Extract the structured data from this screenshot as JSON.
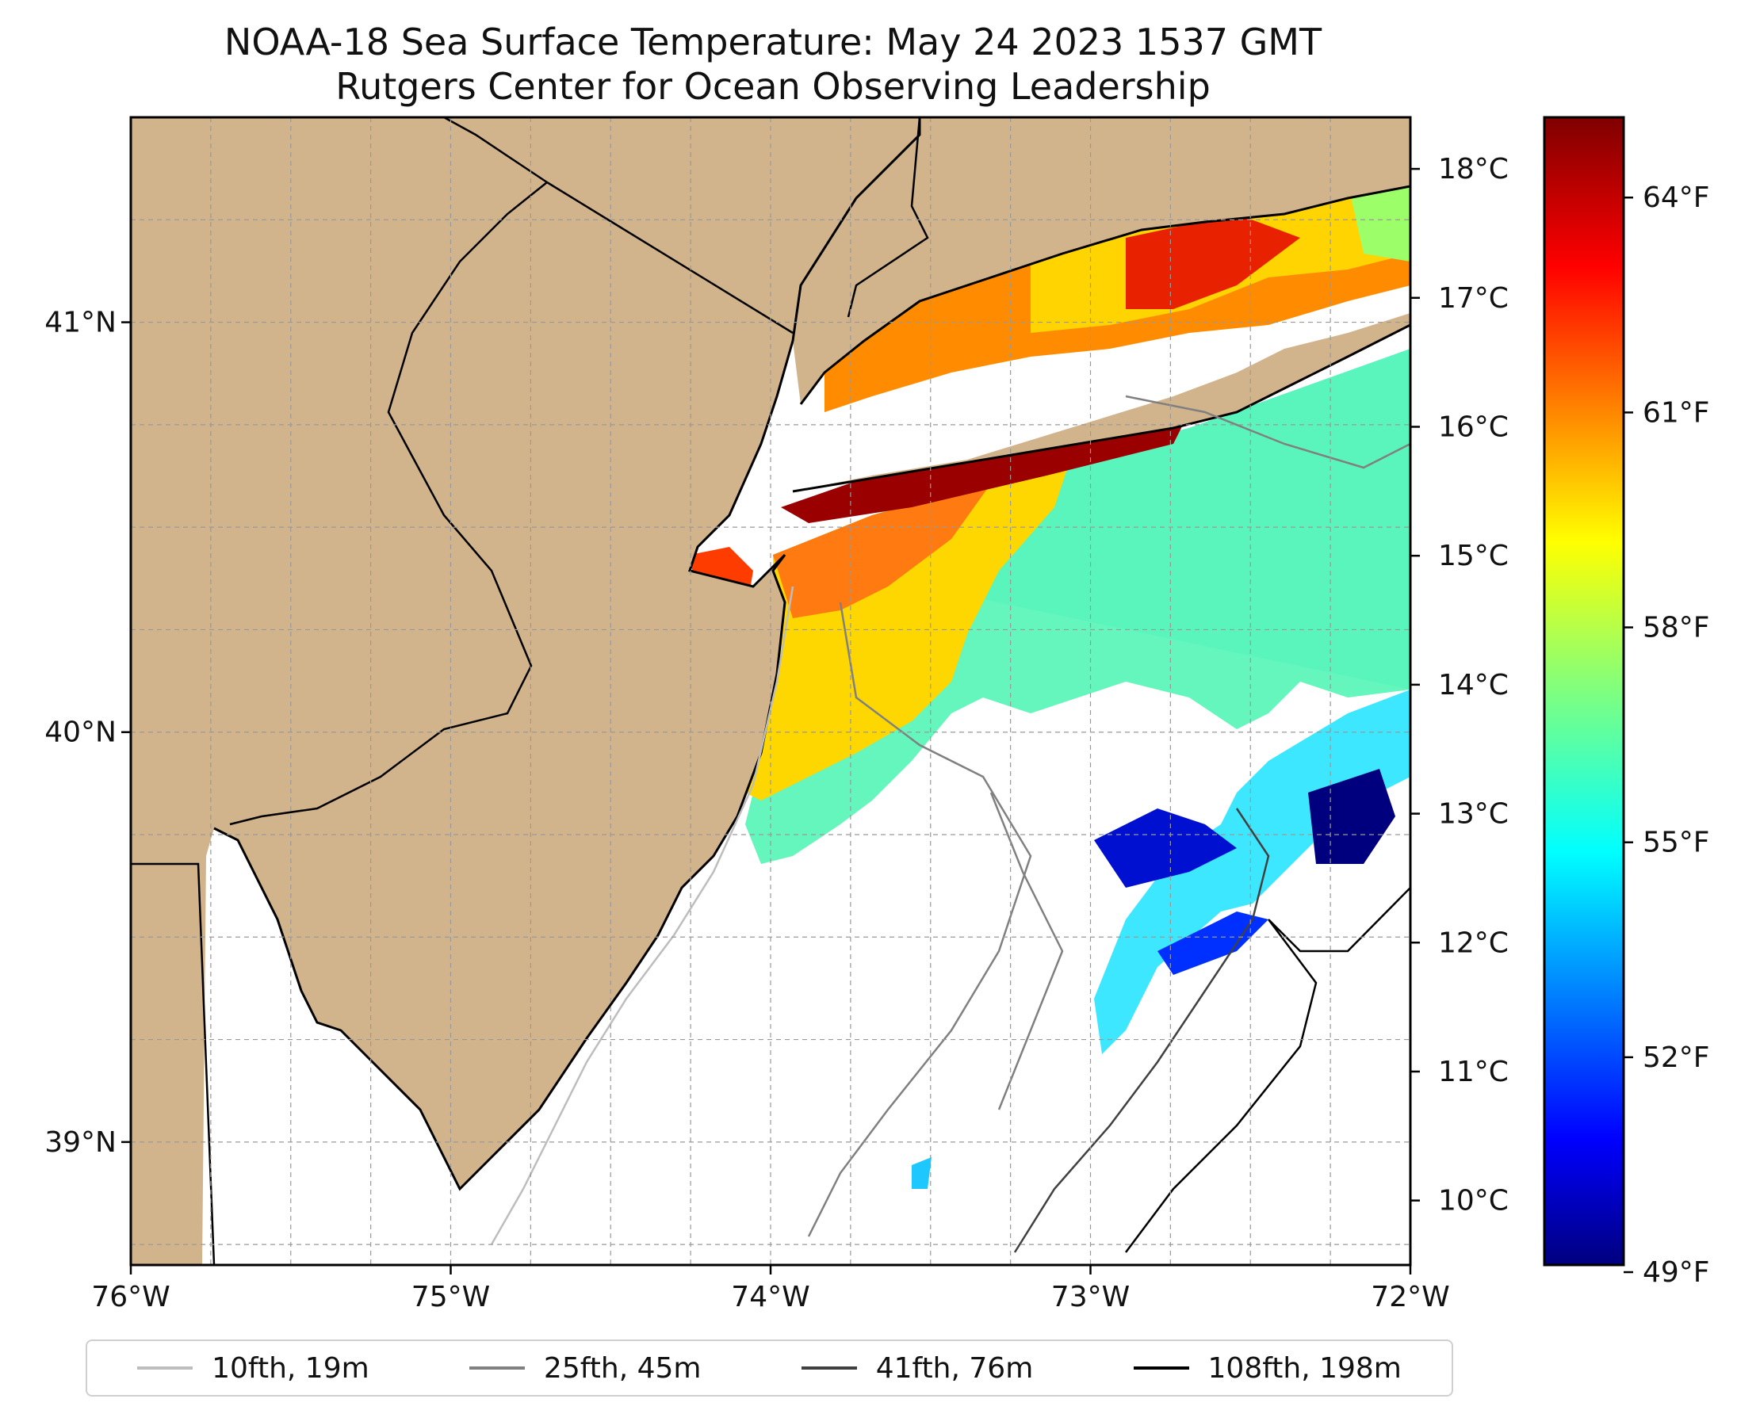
{
  "title": {
    "line1": "NOAA-18 Sea Surface Temperature: May 24 2023 1537 GMT",
    "line2": "Rutgers Center for Ocean Observing Leadership"
  },
  "map": {
    "lon_range": [
      -76,
      -72
    ],
    "lat_range": [
      38.7,
      41.5
    ],
    "lon_ticks": [
      {
        "value": -76,
        "label": "76°W"
      },
      {
        "value": -75,
        "label": "75°W"
      },
      {
        "value": -74,
        "label": "74°W"
      },
      {
        "value": -73,
        "label": "73°W"
      },
      {
        "value": -72,
        "label": "72°W"
      }
    ],
    "lat_ticks": [
      {
        "value": 41,
        "label": "41°N"
      },
      {
        "value": 40,
        "label": "40°N"
      },
      {
        "value": 39,
        "label": "39°N"
      }
    ],
    "grid": true,
    "land_color": "#d2b48c",
    "no_data_color": "#ffffff"
  },
  "colorbar": {
    "cmap": "jet",
    "celsius_range": [
      9.5,
      18.4
    ],
    "celsius_ticks": [
      {
        "value": 18,
        "label": "18°C"
      },
      {
        "value": 17,
        "label": "17°C"
      },
      {
        "value": 16,
        "label": "16°C"
      },
      {
        "value": 15,
        "label": "15°C"
      },
      {
        "value": 14,
        "label": "14°C"
      },
      {
        "value": 13,
        "label": "13°C"
      },
      {
        "value": 12,
        "label": "12°C"
      },
      {
        "value": 11,
        "label": "11°C"
      },
      {
        "value": 10,
        "label": "10°C"
      }
    ],
    "fahrenheit_ticks": [
      {
        "value": 64,
        "label": "64°F"
      },
      {
        "value": 61,
        "label": "61°F"
      },
      {
        "value": 58,
        "label": "58°F"
      },
      {
        "value": 55,
        "label": "55°F"
      },
      {
        "value": 52,
        "label": "52°F"
      },
      {
        "value": 49,
        "label": "49°F"
      }
    ]
  },
  "legend": [
    {
      "label": "10fth, 19m",
      "color": "#bdbdbd"
    },
    {
      "label": "25fth, 45m",
      "color": "#808080"
    },
    {
      "label": "41fth, 76m",
      "color": "#404040"
    },
    {
      "label": "108fth, 198m",
      "color": "#000000"
    }
  ]
}
